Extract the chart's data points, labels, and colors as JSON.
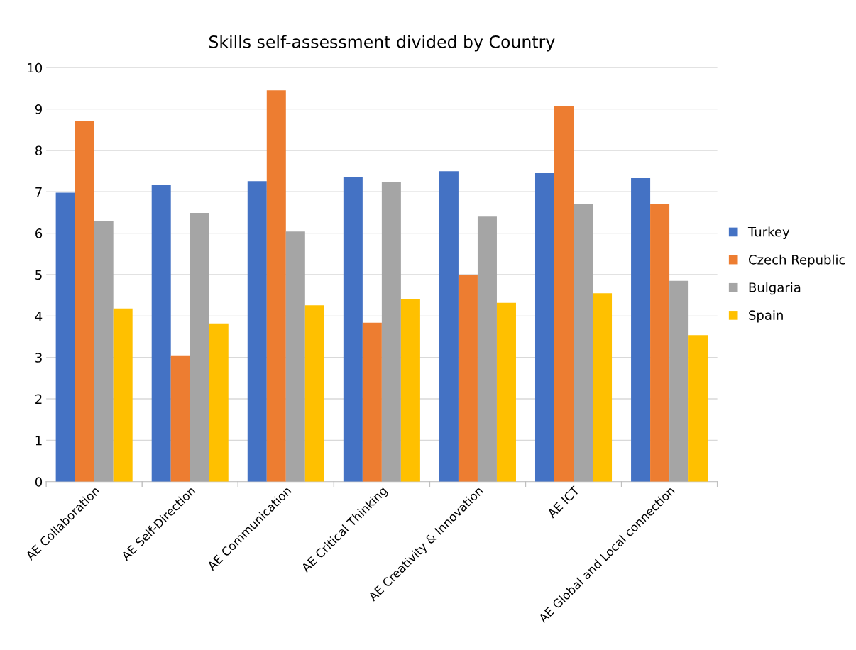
{
  "chart_data": {
    "type": "bar",
    "title": "Skills self-assessment divided by Country",
    "categories": [
      "AE Collaboration",
      "AE Self-Direction",
      "AE Communication",
      "AE Critical Thinking",
      "AE Creativity & Innovation",
      "AE ICT",
      "AE Global and Local connection"
    ],
    "series": [
      {
        "name": "Turkey",
        "color": "#4472c4",
        "values": [
          6.98,
          7.16,
          7.26,
          7.36,
          7.5,
          7.45,
          7.33
        ]
      },
      {
        "name": "Czech Republic",
        "color": "#ed7d31",
        "values": [
          8.72,
          3.05,
          9.45,
          3.84,
          5.0,
          9.06,
          6.71
        ]
      },
      {
        "name": "Bulgaria",
        "color": "#a5a5a5",
        "values": [
          6.3,
          6.49,
          6.04,
          7.24,
          6.4,
          6.7,
          4.85
        ]
      },
      {
        "name": "Spain",
        "color": "#ffc000",
        "values": [
          4.18,
          3.82,
          4.26,
          4.4,
          4.32,
          4.55,
          3.54
        ]
      }
    ],
    "ylim": [
      0,
      10
    ],
    "yticks": [
      0,
      1,
      2,
      3,
      4,
      5,
      6,
      7,
      8,
      9,
      10
    ],
    "grid": "y",
    "legend": "right"
  }
}
